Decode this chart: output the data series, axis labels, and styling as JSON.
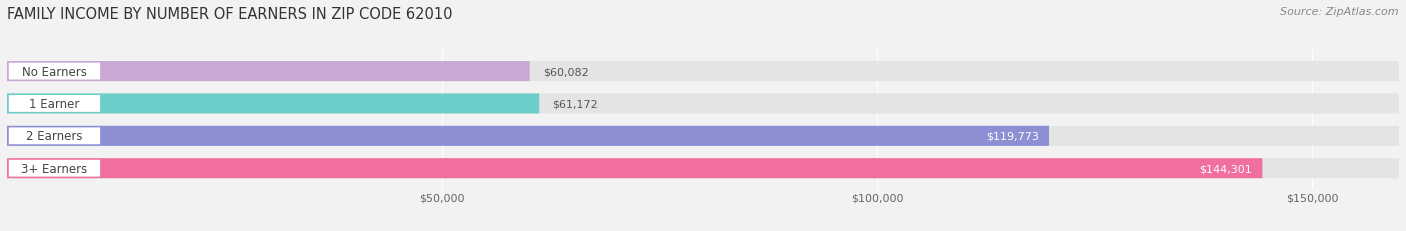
{
  "title": "FAMILY INCOME BY NUMBER OF EARNERS IN ZIP CODE 62010",
  "source": "Source: ZipAtlas.com",
  "categories": [
    "No Earners",
    "1 Earner",
    "2 Earners",
    "3+ Earners"
  ],
  "values": [
    60082,
    61172,
    119773,
    144301
  ],
  "bar_colors": [
    "#c9a8d4",
    "#6dcdc8",
    "#8c8fd4",
    "#f06fa0"
  ],
  "value_labels": [
    "$60,082",
    "$61,172",
    "$119,773",
    "$144,301"
  ],
  "xlim_min": 0,
  "xlim_max": 160000,
  "xticks": [
    50000,
    100000,
    150000
  ],
  "xtick_labels": [
    "$50,000",
    "$100,000",
    "$150,000"
  ],
  "background_color": "#f2f2f2",
  "bar_bg_color": "#e4e4e4",
  "title_fontsize": 10.5,
  "source_fontsize": 8,
  "bar_height": 0.62,
  "figsize": [
    14.06,
    2.32
  ]
}
